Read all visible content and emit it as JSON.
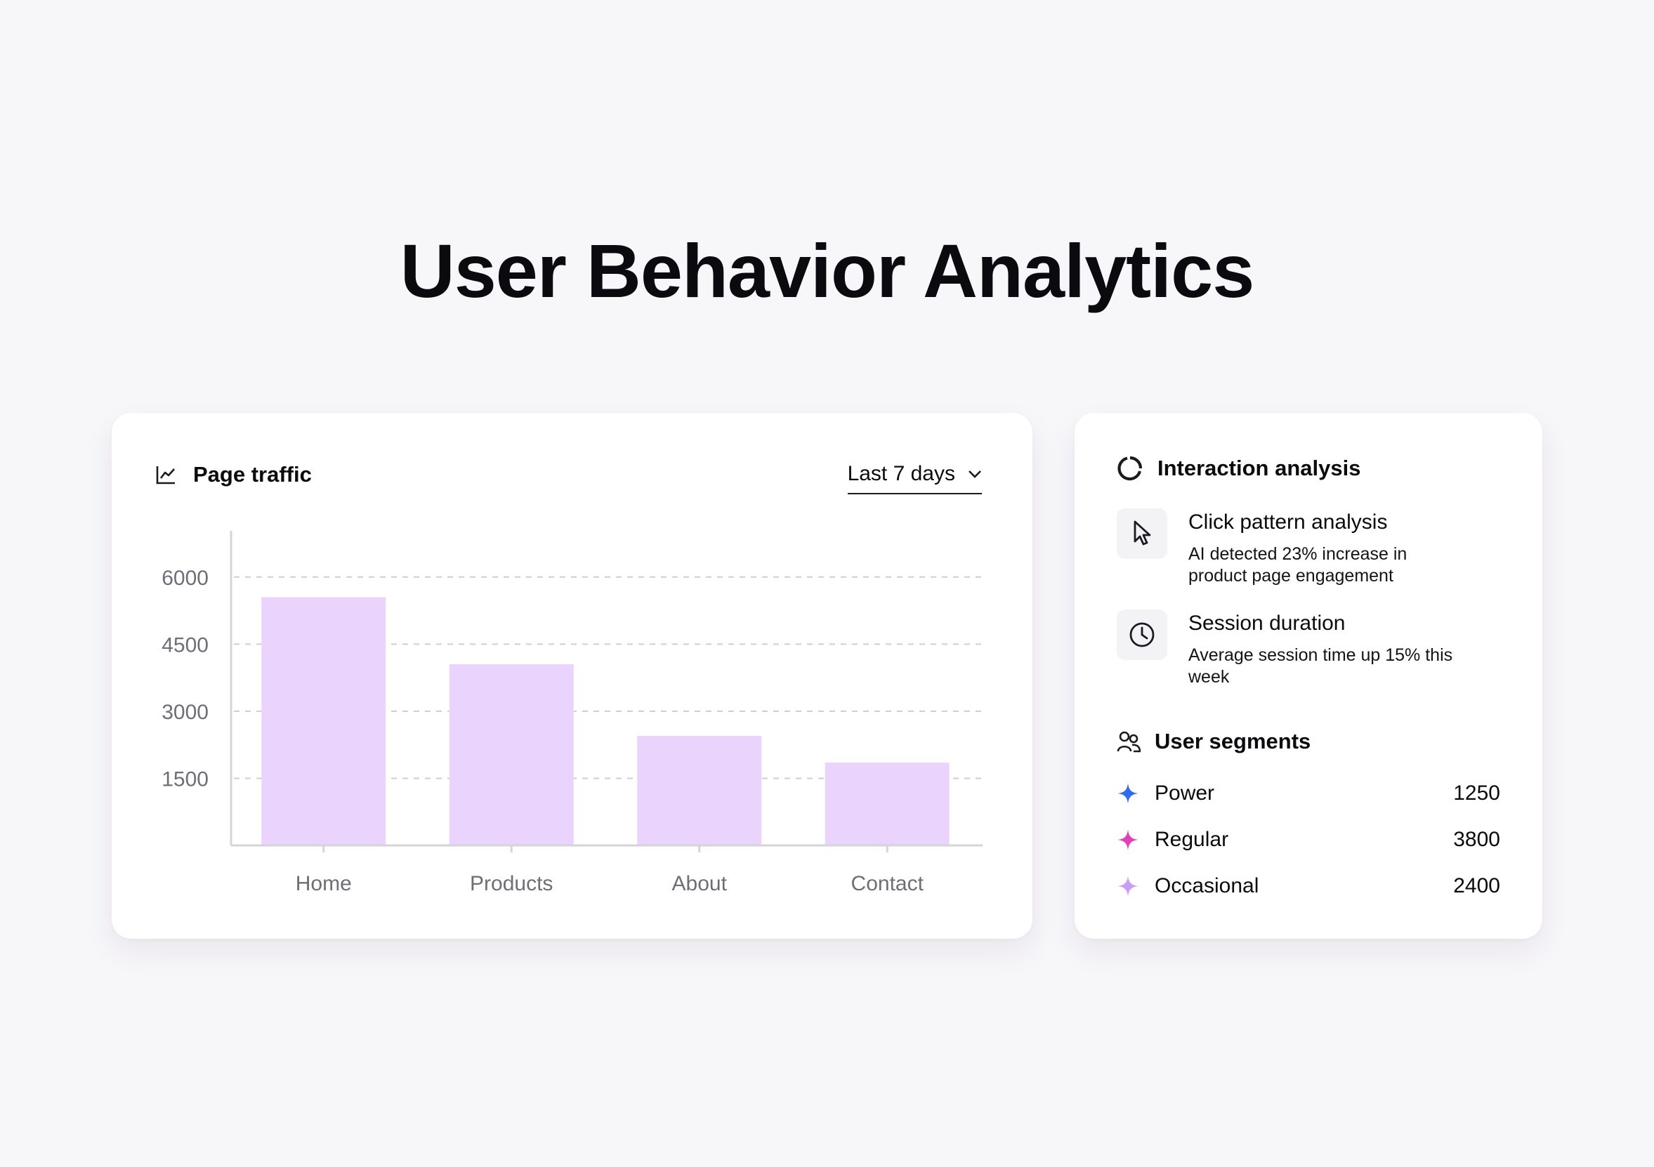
{
  "page": {
    "title": "User Behavior Analytics"
  },
  "traffic": {
    "title": "Page traffic",
    "range": "Last 7 days"
  },
  "chart_data": {
    "type": "bar",
    "title": "Page traffic",
    "categories": [
      "Home",
      "Products",
      "About",
      "Contact"
    ],
    "values": [
      5550,
      4050,
      2450,
      1850
    ],
    "yticks": [
      1500,
      3000,
      4500,
      6000
    ],
    "ylim": [
      0,
      7000
    ],
    "xlabel": "",
    "ylabel": "",
    "grid": true,
    "bar_color": "#ead3fd"
  },
  "insights": {
    "title": "Interaction analysis",
    "items": [
      {
        "title": "Click pattern analysis",
        "line1": "AI detected 23% increase in",
        "line2": "product page engagement",
        "icon": "cursor-icon"
      },
      {
        "title": "Session duration",
        "line1": "Average session time up 15% this",
        "line2": "week",
        "icon": "clock-icon"
      }
    ]
  },
  "segments": {
    "title": "User segments",
    "items": [
      {
        "name": "Power",
        "value": "1250",
        "color": "#2f6bea"
      },
      {
        "name": "Regular",
        "value": "3800",
        "color": "#e23fb8"
      },
      {
        "name": "Occasional",
        "value": "2400",
        "color": "#c99cf5"
      }
    ]
  }
}
